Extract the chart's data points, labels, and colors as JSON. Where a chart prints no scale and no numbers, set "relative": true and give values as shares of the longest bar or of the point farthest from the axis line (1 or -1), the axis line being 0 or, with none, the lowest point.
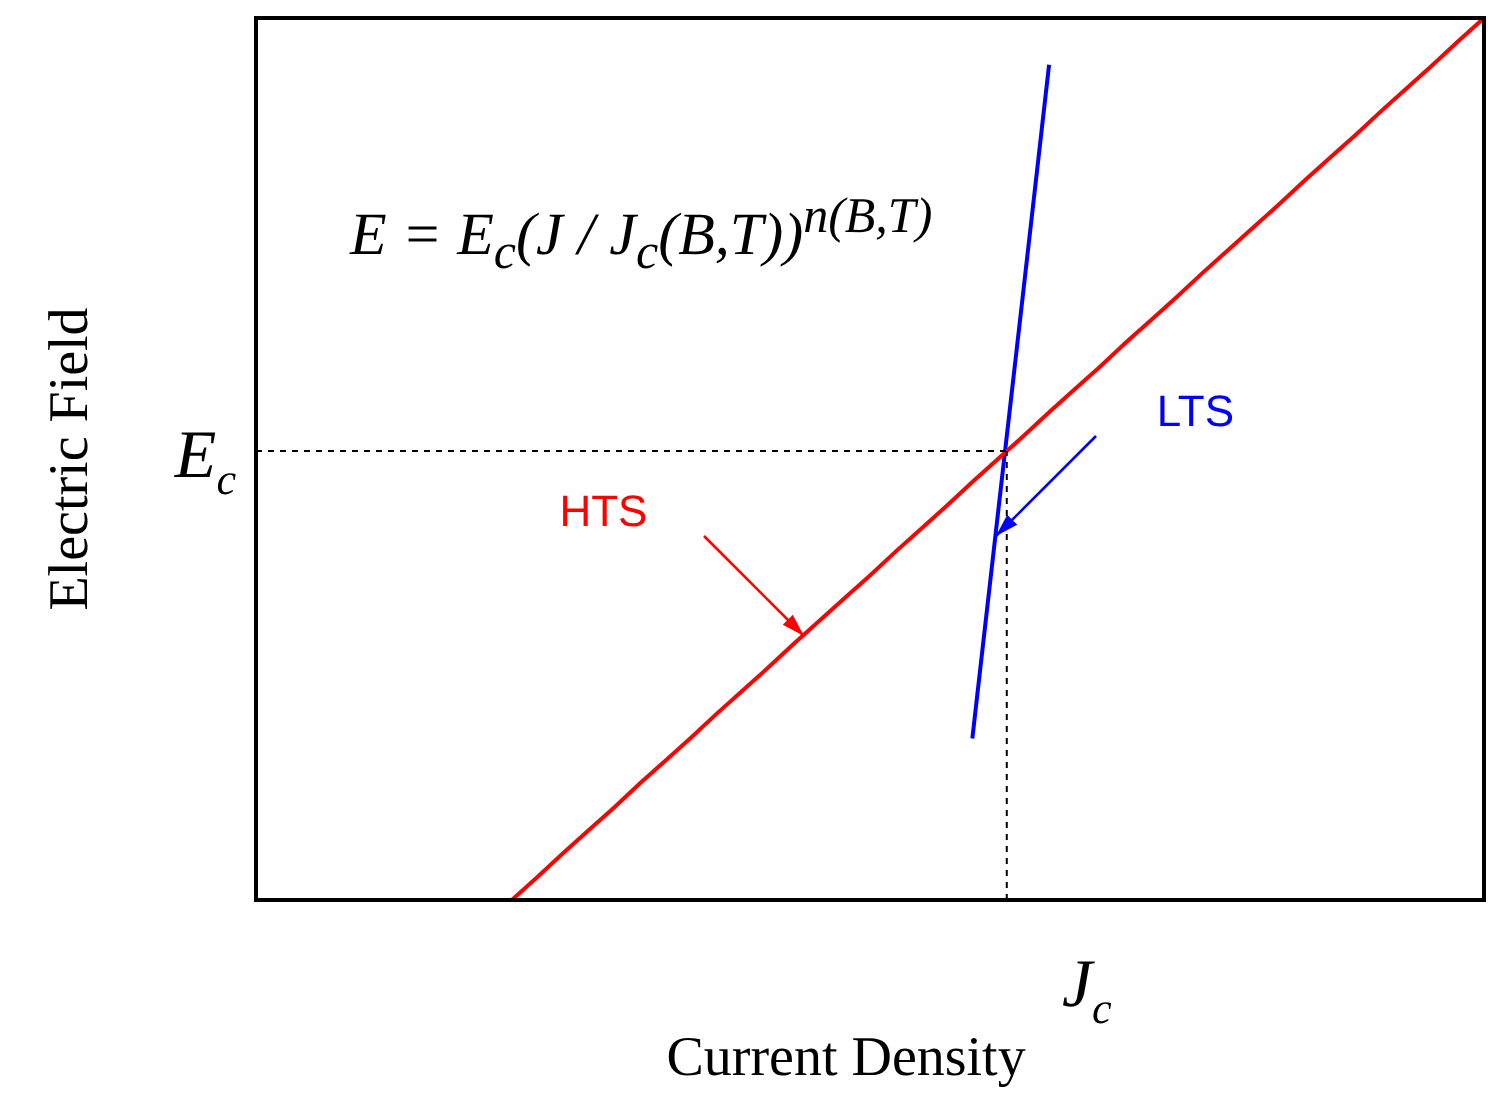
{
  "chart_data": {
    "type": "line",
    "xlabel": "Current Density",
    "ylabel": "Electric Field",
    "relative": true,
    "categories": [
      null,
      null,
      null,
      null,
      null,
      null,
      null,
      null,
      null,
      null,
      null,
      null,
      null,
      null,
      null,
      null,
      null,
      null,
      null,
      null,
      null,
      null,
      null,
      null,
      null,
      null,
      null,
      null,
      null,
      null,
      null,
      null,
      null,
      null,
      null,
      null,
      null,
      null,
      null,
      null,
      null,
      null,
      null,
      null,
      null,
      null,
      null,
      null,
      null
    ],
    "series": [
      {
        "name": "HTS",
        "color": "#ff0000",
        "values": [
          null,
          null,
          null,
          null,
          null,
          null,
          null,
          null,
          null,
          null,
          0,
          0.026,
          0.053,
          0.079,
          0.105,
          0.132,
          0.158,
          0.184,
          0.211,
          0.237,
          0.263,
          0.29,
          0.316,
          0.342,
          0.368,
          0.395,
          0.421,
          0.447,
          0.474,
          0.5,
          0.526,
          0.553,
          0.579,
          0.605,
          0.632,
          0.658,
          0.684,
          0.711,
          0.737,
          0.763,
          0.789,
          0.816,
          0.842,
          0.868,
          0.895,
          0.921,
          0.947,
          0.974,
          1
        ]
      },
      {
        "name": "LTS",
        "color": "#0000ff",
        "values": [
          null,
          null,
          null,
          null,
          null,
          null,
          null,
          null,
          null,
          null,
          null,
          null,
          null,
          null,
          null,
          null,
          null,
          null,
          null,
          null,
          null,
          null,
          null,
          null,
          null,
          null,
          null,
          null,
          0.183,
          0.438,
          0.692,
          0.947,
          null,
          null,
          null,
          null,
          null,
          null,
          null,
          null,
          null,
          null,
          null,
          null,
          null,
          null,
          null,
          null,
          null
        ]
      }
    ],
    "ref_lines": [
      {
        "axis": "y",
        "value": 0.509,
        "label": "E$_{c}$",
        "color": "#000000",
        "line_style": "dashed"
      },
      {
        "axis": "x",
        "label": "J$_{c}$",
        "color": "#000000",
        "line_style": "dashed"
      }
    ],
    "annotations": [
      "E = E$_{c}$(J / J$_{c}$(B,T))$^{n(B,T)}$"
    ],
    "marker": "none",
    "line_style": "solid",
    "grid": false,
    "legend": false
  }
}
